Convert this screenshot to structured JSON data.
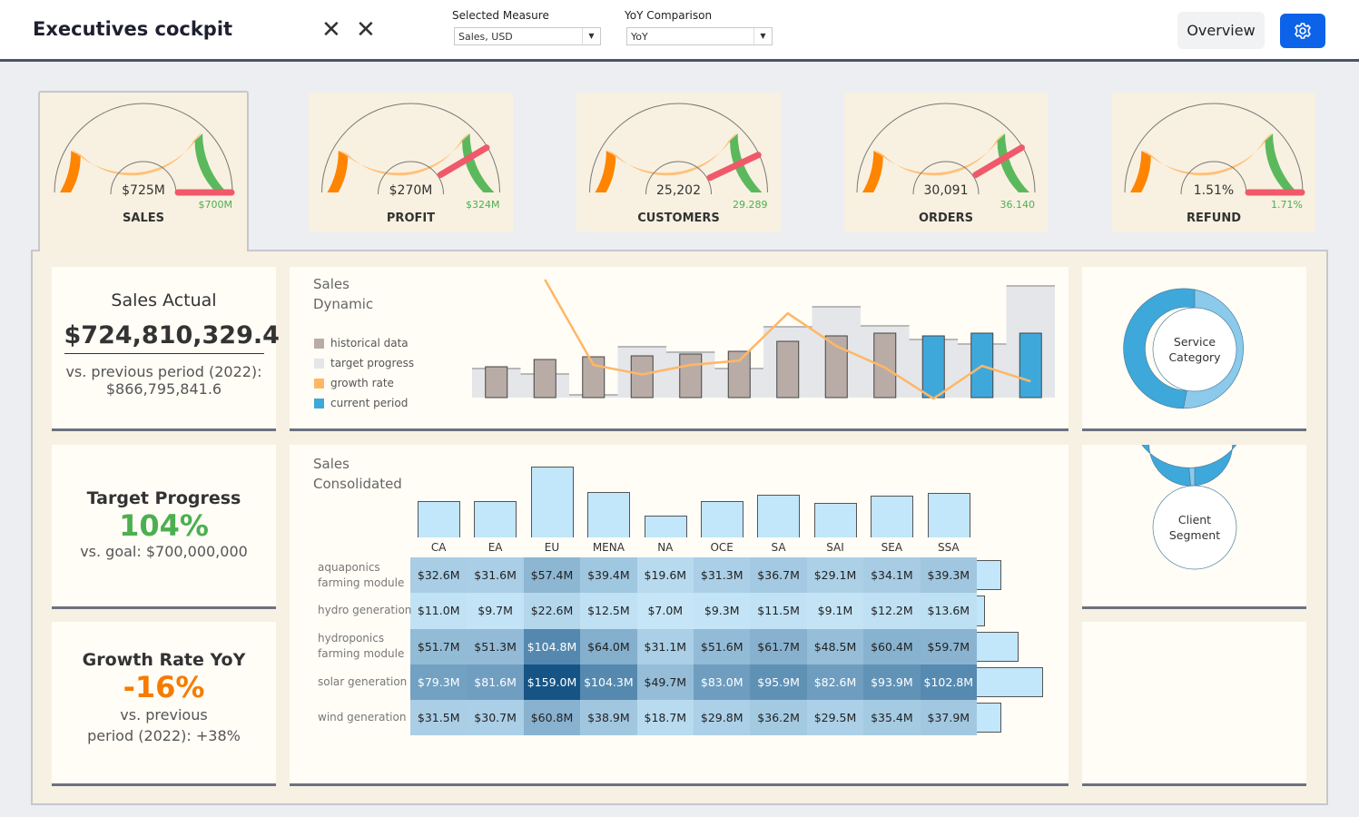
{
  "header": {
    "title": "Executives cockpit",
    "close_icons": [
      "x-icon",
      "x-icon"
    ],
    "filters": [
      {
        "label": "Selected Measure",
        "value": "Sales, USD"
      },
      {
        "label": "YoY Comparison",
        "value": "YoY"
      }
    ],
    "overview_label": "Overview",
    "settings_icon": "gear-icon",
    "accent": "#0d62ea"
  },
  "gauges": [
    {
      "label": "SALES",
      "value": "$725M",
      "target": "$700M",
      "needle_fraction": 1.0
    },
    {
      "label": "PROFIT",
      "value": "$270M",
      "target": "$324M",
      "needle_fraction": 0.83
    },
    {
      "label": "CUSTOMERS",
      "value": "25,202",
      "target": "29.289",
      "needle_fraction": 0.86
    },
    {
      "label": "ORDERS",
      "value": "30,091",
      "target": "36.140",
      "needle_fraction": 0.83
    },
    {
      "label": "REFUND",
      "value": "1.51%",
      "target": "1.71%",
      "needle_fraction": 1.0
    }
  ],
  "kpis": {
    "sales_actual": {
      "title": "Sales Actual",
      "value": "$724,810,329.4",
      "sub1": "vs. previous period (2022):",
      "sub2": "$866,795,841.6"
    },
    "target_progress": {
      "title": "Target Progress",
      "value": "104%",
      "sub": "vs. goal: $700,000,000",
      "color": "#4caf50"
    },
    "growth_rate": {
      "title": "Growth Rate YoY",
      "value": "-16%",
      "sub1": "vs. previous",
      "sub2": "period (2022): +38%",
      "color": "#f57c00"
    }
  },
  "chart_data": [
    {
      "type": "bar",
      "title": "Sales Dynamic",
      "title_lines": [
        "Sales",
        "Dynamic"
      ],
      "legend": [
        {
          "label": "historical data",
          "color": "#b9aca6"
        },
        {
          "label": "target progress",
          "color": "#e4e6ea"
        },
        {
          "label": "growth rate",
          "color": "#ffb766"
        },
        {
          "label": "current period",
          "color": "#3fa8da"
        }
      ],
      "series": [
        {
          "name": "historical data",
          "values": [
            34,
            42,
            45,
            46,
            48,
            51,
            62,
            68,
            71,
            null,
            null,
            null
          ]
        },
        {
          "name": "current period",
          "values": [
            null,
            null,
            null,
            null,
            null,
            null,
            null,
            null,
            null,
            68,
            71,
            71
          ]
        },
        {
          "name": "target progress",
          "values": [
            32,
            26,
            3,
            56,
            50,
            32,
            78,
            100,
            79,
            64,
            59,
            123
          ]
        },
        {
          "name": "growth rate",
          "values": [
            null,
            120,
            21,
            10,
            21,
            26,
            81,
            43,
            18,
            -18,
            20,
            2
          ]
        }
      ]
    },
    {
      "type": "heatmap",
      "title": "Sales Consolidated",
      "title_lines": [
        "Sales",
        "Consolidated"
      ],
      "columns": [
        "CA",
        "EA",
        "EU",
        "MENA",
        "NA",
        "OCE",
        "SA",
        "SAI",
        "SEA",
        "SSA"
      ],
      "rows": [
        {
          "label": [
            "aquaponics",
            "farming module"
          ],
          "values": [
            32.6,
            31.6,
            57.4,
            39.4,
            19.6,
            31.3,
            36.7,
            29.1,
            34.1,
            39.3
          ],
          "labels": [
            "$32.6M",
            "$31.6M",
            "$57.4M",
            "$39.4M",
            "$19.6M",
            "$31.3M",
            "$36.7M",
            "$29.1M",
            "$34.1M",
            "$39.3M"
          ]
        },
        {
          "label": [
            "hydro generation"
          ],
          "values": [
            11.0,
            9.7,
            22.6,
            12.5,
            7.0,
            9.3,
            11.5,
            9.1,
            12.2,
            13.6
          ],
          "labels": [
            "$11.0M",
            "$9.7M",
            "$22.6M",
            "$12.5M",
            "$7.0M",
            "$9.3M",
            "$11.5M",
            "$9.1M",
            "$12.2M",
            "$13.6M"
          ]
        },
        {
          "label": [
            "hydroponics",
            "farming module"
          ],
          "values": [
            51.7,
            51.3,
            104.8,
            64.0,
            31.1,
            51.6,
            61.7,
            48.5,
            60.4,
            59.7
          ],
          "labels": [
            "$51.7M",
            "$51.3M",
            "$104.8M",
            "$64.0M",
            "$31.1M",
            "$51.6M",
            "$61.7M",
            "$48.5M",
            "$60.4M",
            "$59.7M"
          ]
        },
        {
          "label": [
            "solar generation"
          ],
          "values": [
            79.3,
            81.6,
            159.0,
            104.3,
            49.7,
            83.0,
            95.9,
            82.6,
            93.9,
            102.8
          ],
          "labels": [
            "$79.3M",
            "$81.6M",
            "$159.0M",
            "$104.3M",
            "$49.7M",
            "$83.0M",
            "$95.9M",
            "$82.6M",
            "$93.9M",
            "$102.8M"
          ]
        },
        {
          "label": [
            "wind generation"
          ],
          "values": [
            31.5,
            30.7,
            60.8,
            38.9,
            18.7,
            29.8,
            36.2,
            29.5,
            35.4,
            37.9
          ],
          "labels": [
            "$31.5M",
            "$30.7M",
            "$60.8M",
            "$38.9M",
            "$18.7M",
            "$29.8M",
            "$36.2M",
            "$29.5M",
            "$35.4M",
            "$37.9M"
          ]
        }
      ]
    },
    {
      "type": "pie",
      "title": "Service Category",
      "title_lines": [
        "Service",
        "Category"
      ],
      "values": [
        53,
        47
      ],
      "colors": [
        "#3fa8da",
        "#8ccaeb"
      ]
    },
    {
      "type": "pie",
      "title": "Client Segment",
      "title_lines": [
        "Client",
        "Segment"
      ],
      "values": [
        98.5,
        1.5
      ],
      "colors": [
        "#3fa8da",
        "#8ccaeb"
      ]
    }
  ]
}
